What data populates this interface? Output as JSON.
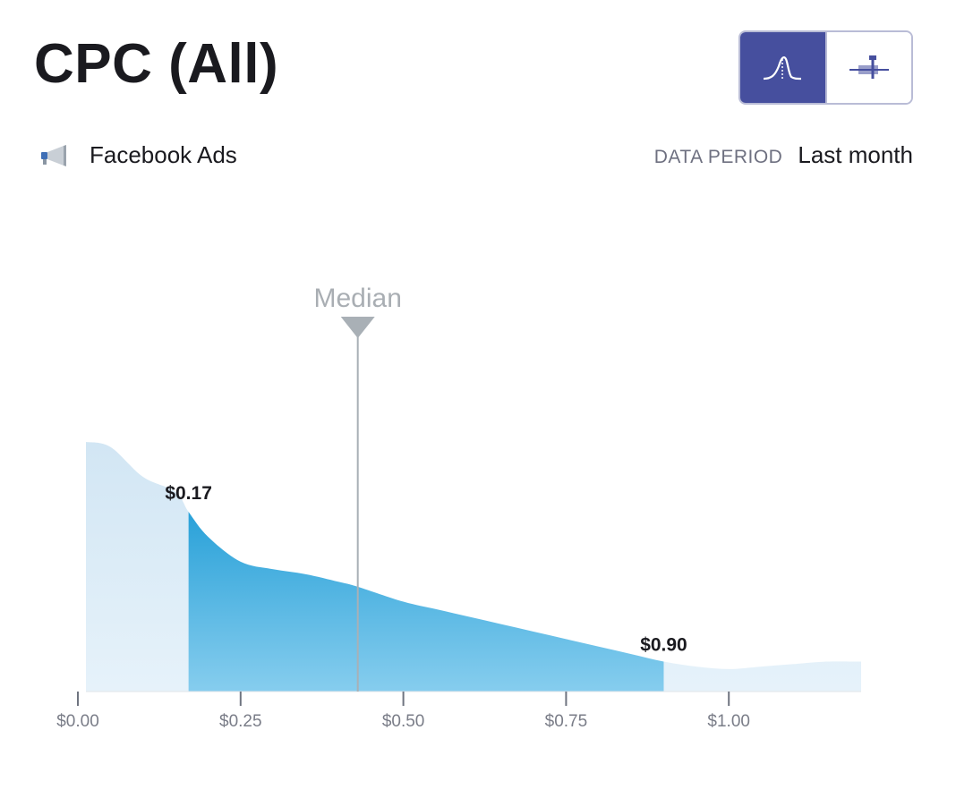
{
  "header": {
    "title": "CPC (All)"
  },
  "view_toggle": {
    "options": [
      {
        "icon": "distribution-curve-icon",
        "active": true
      },
      {
        "icon": "range-bar-icon",
        "active": false
      }
    ]
  },
  "source": {
    "icon": "megaphone-icon",
    "label": "Facebook Ads"
  },
  "period": {
    "label": "DATA PERIOD",
    "value": "Last month"
  },
  "colors": {
    "accent": "#464f9e",
    "band_dark": "#0c90d0",
    "band_light": "#7ec8e8",
    "tail": "#d4e8f5",
    "median_line": "#a9b0b6"
  },
  "chart_data": {
    "type": "area",
    "x": [
      0.0,
      0.05,
      0.1,
      0.15,
      0.17,
      0.2,
      0.25,
      0.3,
      0.35,
      0.4,
      0.43,
      0.5,
      0.55,
      0.6,
      0.65,
      0.7,
      0.75,
      0.8,
      0.85,
      0.9,
      0.95,
      1.0,
      1.05,
      1.1,
      1.15,
      1.2
    ],
    "y": [
      1.0,
      0.98,
      0.86,
      0.8,
      0.72,
      0.62,
      0.52,
      0.49,
      0.47,
      0.44,
      0.42,
      0.36,
      0.33,
      0.3,
      0.27,
      0.24,
      0.21,
      0.18,
      0.15,
      0.12,
      0.1,
      0.09,
      0.1,
      0.11,
      0.12,
      0.12
    ],
    "xlim": [
      0,
      1.2
    ],
    "ticks": [
      0,
      0.25,
      0.5,
      0.75,
      1.0
    ],
    "tick_labels": [
      "$0.00",
      "$0.25",
      "$0.50",
      "$0.75",
      "$1.00"
    ],
    "band": {
      "low": 0.17,
      "high": 0.9,
      "low_label": "$0.17",
      "high_label": "$0.90"
    },
    "median": {
      "value": 0.43,
      "label": "Median"
    }
  }
}
